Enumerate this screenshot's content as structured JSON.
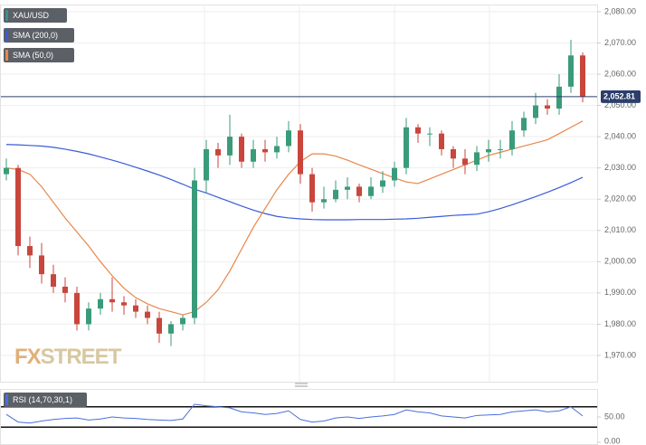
{
  "chart_data": [
    {
      "type": "candlestick",
      "name": "XAU/USD",
      "name_color": "#3d8f8a",
      "up_color": "#3a9b7a",
      "down_color": "#c9463d",
      "open": [
        2028,
        2030,
        2005,
        2002,
        1996,
        1992,
        1990,
        1980,
        1985,
        1988,
        1987,
        1986,
        1984,
        1982,
        1977,
        1980,
        1982,
        2026,
        2036,
        2034,
        2040,
        2032,
        2036,
        2035,
        2037,
        2042,
        2028,
        2019,
        2020,
        2023,
        2024,
        2021,
        2024,
        2026,
        2030,
        2043,
        2041,
        2041,
        2036,
        2033,
        2031,
        2035,
        2036,
        2036,
        2042,
        2046,
        2050,
        2049,
        2056,
        2066
      ],
      "high": [
        2033,
        2031,
        2008,
        2006,
        1999,
        1995,
        1992,
        1987,
        1990,
        1995,
        1989,
        1988,
        1986,
        1984,
        1981,
        1983,
        2030,
        2039,
        2038,
        2047,
        2041,
        2039,
        2039,
        2040,
        2045,
        2044,
        2030,
        2024,
        2026,
        2027,
        2025,
        2027,
        2029,
        2032,
        2046,
        2044,
        2043,
        2042,
        2037,
        2036,
        2037,
        2039,
        2039,
        2045,
        2048,
        2054,
        2052,
        2060,
        2071,
        2067
      ],
      "low": [
        2026,
        2002,
        1998,
        1993,
        1990,
        1987,
        1978,
        1978,
        1983,
        1984,
        1983,
        1982,
        1980,
        1974,
        1973,
        1978,
        1980,
        2022,
        2030,
        2031,
        2030,
        2030,
        2032,
        2033,
        2035,
        2025,
        2016,
        2017,
        2019,
        2020,
        2019,
        2020,
        2022,
        2024,
        2028,
        2038,
        2037,
        2034,
        2030,
        2028,
        2029,
        2032,
        2033,
        2034,
        2040,
        2044,
        2047,
        2047,
        2054,
        2051
      ],
      "close": [
        2030,
        2005,
        2002,
        1996,
        1992,
        1990,
        1980,
        1985,
        1988,
        1987,
        1986,
        1984,
        1982,
        1977,
        1980,
        1982,
        2026,
        2036,
        2034,
        2040,
        2032,
        2036,
        2035,
        2037,
        2042,
        2028,
        2019,
        2020,
        2023,
        2024,
        2021,
        2024,
        2026,
        2030,
        2043,
        2041,
        2041,
        2036,
        2033,
        2031,
        2035,
        2036,
        2036,
        2042,
        2046,
        2050,
        2049,
        2056,
        2066,
        2052.81
      ],
      "series": [
        {
          "name": "SMA (200,0)",
          "color": "#3a5bd9",
          "values": [
            2037.5,
            2037.4,
            2037.2,
            2037,
            2036.6,
            2036,
            2035.3,
            2034.5,
            2033.5,
            2032.5,
            2031.4,
            2030.2,
            2029,
            2027.7,
            2026.3,
            2024.8,
            2023.2,
            2022,
            2020.6,
            2019.2,
            2017.8,
            2016.5,
            2015.4,
            2014.5,
            2014,
            2013.7,
            2013.5,
            2013.4,
            2013.4,
            2013.4,
            2013.5,
            2013.5,
            2013.5,
            2013.6,
            2013.7,
            2013.9,
            2014.2,
            2014.5,
            2014.8,
            2015,
            2015.2,
            2016,
            2017,
            2018.2,
            2019.5,
            2020.8,
            2022.2,
            2023.7,
            2025.3,
            2027
          ]
        },
        {
          "name": "SMA (50,0)",
          "color": "#e8864a",
          "values": [
            2030,
            2029.5,
            2028,
            2024,
            2019,
            2014,
            2009.5,
            2005,
            2000,
            1995.5,
            1991.5,
            1988.5,
            1986.5,
            1985,
            1984,
            1983,
            1984,
            1987,
            1991,
            1997,
            2004,
            2011,
            2017,
            2023,
            2028,
            2032,
            2034.5,
            2034.5,
            2033.8,
            2032.5,
            2031,
            2029.6,
            2028.2,
            2026.8,
            2025.5,
            2025,
            2026.5,
            2028,
            2029.5,
            2031,
            2032.5,
            2034,
            2035,
            2036,
            2037,
            2038,
            2039,
            2041,
            2043,
            2045
          ]
        }
      ],
      "last_price": {
        "value": 2052.81,
        "label": "2,052.81"
      },
      "ylim": [
        1961.6,
        2082.0
      ],
      "yticks": [
        {
          "value": 2080,
          "label": "2,080.00"
        },
        {
          "value": 2070,
          "label": "2,070.00"
        },
        {
          "value": 2060,
          "label": "2,060.00"
        },
        {
          "value": 2050,
          "label": "2,050.00"
        },
        {
          "value": 2040,
          "label": "2,040.00"
        },
        {
          "value": 2030,
          "label": "2,030.00"
        },
        {
          "value": 2020,
          "label": "2,020.00"
        },
        {
          "value": 2010,
          "label": "2,010.00"
        },
        {
          "value": 2000,
          "label": "2,000.00"
        },
        {
          "value": 1990,
          "label": "1,990.00"
        },
        {
          "value": 1980,
          "label": "1,980.00"
        },
        {
          "value": 1970,
          "label": "1,970.00"
        }
      ],
      "grid": true,
      "watermark": [
        "FX",
        "STREET"
      ]
    },
    {
      "type": "line",
      "name": "RSI (14,70,30,1)",
      "color": "#4a6fdc",
      "values": [
        55,
        40,
        38,
        42,
        45,
        47,
        48,
        44,
        46,
        50,
        48,
        47,
        45,
        44,
        43,
        46,
        75,
        72,
        70,
        68,
        60,
        58,
        55,
        57,
        62,
        45,
        40,
        42,
        48,
        50,
        47,
        50,
        52,
        55,
        64,
        60,
        58,
        52,
        50,
        48,
        53,
        54,
        55,
        60,
        62,
        64,
        60,
        62,
        70,
        52
      ],
      "levels": [
        70,
        30
      ],
      "ylim": [
        0,
        100
      ],
      "yticks": [
        {
          "value": 50,
          "label": "50.00"
        },
        {
          "value": 0,
          "label": "0.00"
        }
      ]
    }
  ]
}
